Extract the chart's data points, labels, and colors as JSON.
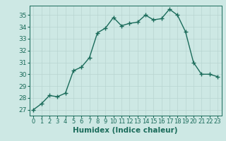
{
  "x": [
    0,
    1,
    2,
    3,
    4,
    5,
    6,
    7,
    8,
    9,
    10,
    11,
    12,
    13,
    14,
    15,
    16,
    17,
    18,
    19,
    20,
    21,
    22,
    23
  ],
  "y": [
    27.0,
    27.5,
    28.2,
    28.1,
    28.4,
    30.3,
    30.6,
    31.4,
    33.5,
    33.9,
    34.8,
    34.1,
    34.3,
    34.4,
    35.0,
    34.6,
    34.7,
    35.5,
    35.0,
    33.6,
    31.0,
    30.0,
    30.0,
    29.8
  ],
  "line_color": "#1a6b5a",
  "marker": "+",
  "marker_size": 4,
  "bg_color": "#cde8e4",
  "grid_color": "#b8d4d0",
  "xlabel": "Humidex (Indice chaleur)",
  "xlim": [
    -0.5,
    23.5
  ],
  "ylim": [
    26.5,
    35.8
  ],
  "yticks": [
    27,
    28,
    29,
    30,
    31,
    32,
    33,
    34,
    35
  ],
  "xticks": [
    0,
    1,
    2,
    3,
    4,
    5,
    6,
    7,
    8,
    9,
    10,
    11,
    12,
    13,
    14,
    15,
    16,
    17,
    18,
    19,
    20,
    21,
    22,
    23
  ],
  "xlabel_fontsize": 7.5,
  "ytick_fontsize": 6.5,
  "xtick_fontsize": 6,
  "line_width": 1.0
}
